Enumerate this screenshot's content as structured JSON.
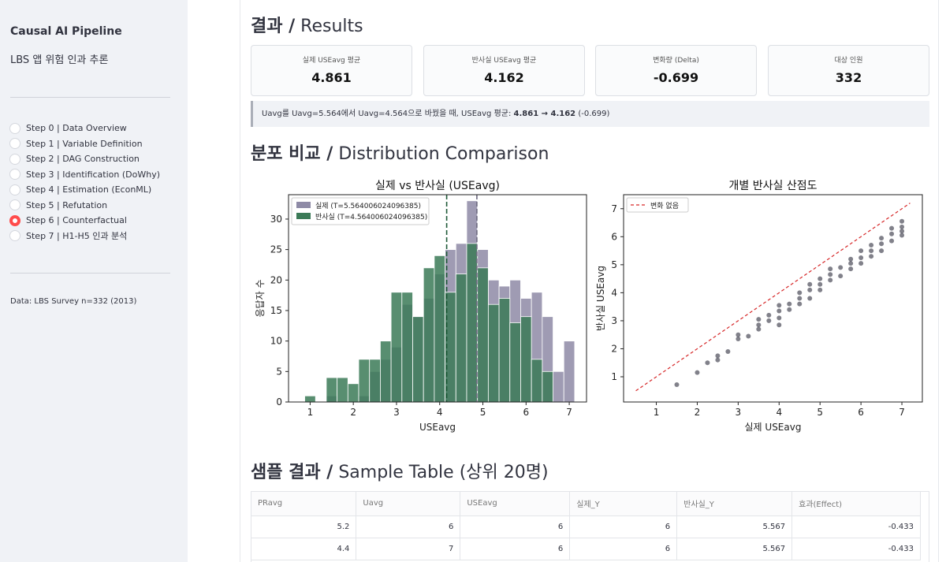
{
  "sidebar": {
    "title": "Causal AI Pipeline",
    "subtitle": "LBS 앱 위험 인과 추론",
    "steps": [
      {
        "label": "Step 0 | Data Overview",
        "selected": false
      },
      {
        "label": "Step 1 | Variable Definition",
        "selected": false
      },
      {
        "label": "Step 2 | DAG Construction",
        "selected": false
      },
      {
        "label": "Step 3 | Identification (DoWhy)",
        "selected": false
      },
      {
        "label": "Step 4 | Estimation (EconML)",
        "selected": false
      },
      {
        "label": "Step 5 | Refutation",
        "selected": false
      },
      {
        "label": "Step 6 | Counterfactual",
        "selected": true
      },
      {
        "label": "Step 7 | H1-H5 인과 분석",
        "selected": false
      }
    ],
    "data_note": "Data: LBS Survey n=332 (2013)"
  },
  "results": {
    "heading_ko": "결과 /",
    "heading_en": " Results",
    "metrics": [
      {
        "label": "실제 USEavg 평균",
        "value": "4.861"
      },
      {
        "label": "반사실 USEavg 평균",
        "value": "4.162"
      },
      {
        "label": "변화량 (Delta)",
        "value": "-0.699"
      },
      {
        "label": "대상 인원",
        "value": "332"
      }
    ],
    "info_prefix": "Uavg를 Uavg=5.564에서 Uavg=4.564으로 바꿨을 때, USEavg 평균: ",
    "info_bold": "4.861 → 4.162",
    "info_suffix": " (-0.699)"
  },
  "distribution": {
    "heading_ko": "분포 비교 /",
    "heading_en": " Distribution Comparison"
  },
  "sample": {
    "heading_ko": "샘플 결과 /",
    "heading_en": " Sample Table (상위 20명)",
    "columns": [
      "PRavg",
      "Uavg",
      "USEavg",
      "실제_Y",
      "반사실_Y",
      "효과(Effect)"
    ],
    "rows": [
      [
        "5.2",
        "6",
        "6",
        "6",
        "5.567",
        "-0.433"
      ],
      [
        "4.4",
        "7",
        "6",
        "6",
        "5.567",
        "-0.433"
      ]
    ]
  },
  "chart_data": [
    {
      "type": "bar",
      "title": "실제 vs 반사실  (USEavg)",
      "xlabel": "USEavg",
      "ylabel": "응답자 수",
      "xlim": [
        0.5,
        7.4
      ],
      "ylim": [
        0,
        34
      ],
      "xticks": [
        1,
        2,
        3,
        4,
        5,
        6,
        7
      ],
      "yticks": [
        0,
        5,
        10,
        15,
        20,
        25,
        30
      ],
      "legend": "top-left",
      "series": [
        {
          "name": "실제 (T=5.564006024096385)",
          "color": "#8e8aa6",
          "bars": [
            [
              1.5,
              1
            ],
            [
              2.25,
              1
            ],
            [
              2.5,
              5
            ],
            [
              2.75,
              7
            ],
            [
              3.0,
              9
            ],
            [
              3.25,
              16
            ],
            [
              3.5,
              14
            ],
            [
              3.75,
              17
            ],
            [
              4.0,
              21
            ],
            [
              4.25,
              25
            ],
            [
              4.5,
              26
            ],
            [
              4.75,
              33
            ],
            [
              5.0,
              25
            ],
            [
              5.25,
              20
            ],
            [
              5.5,
              19
            ],
            [
              5.75,
              20
            ],
            [
              6.0,
              17
            ],
            [
              6.25,
              18
            ],
            [
              6.5,
              14
            ],
            [
              6.75,
              5
            ],
            [
              7.0,
              10
            ]
          ],
          "mean_line": 4.861
        },
        {
          "name": "반사실 (T=4.564006024096385)",
          "color": "#3b7a57",
          "bars": [
            [
              1.0,
              1
            ],
            [
              1.5,
              4
            ],
            [
              1.75,
              4
            ],
            [
              2.0,
              3
            ],
            [
              2.25,
              7
            ],
            [
              2.5,
              7
            ],
            [
              2.75,
              10
            ],
            [
              3.0,
              18
            ],
            [
              3.25,
              18
            ],
            [
              3.5,
              14
            ],
            [
              3.75,
              22
            ],
            [
              4.0,
              24
            ],
            [
              4.25,
              18
            ],
            [
              4.5,
              21
            ],
            [
              4.75,
              26
            ],
            [
              5.0,
              22
            ],
            [
              5.25,
              16
            ],
            [
              5.5,
              17
            ],
            [
              5.75,
              13
            ],
            [
              6.0,
              14
            ],
            [
              6.25,
              7
            ],
            [
              6.5,
              5
            ]
          ],
          "mean_line": 4.162
        }
      ]
    },
    {
      "type": "scatter",
      "title": "개별 반사실 산점도",
      "xlabel": "실제 USEavg",
      "ylabel": "반사실 USEavg",
      "xlim": [
        0.2,
        7.5
      ],
      "ylim": [
        0.1,
        7.5
      ],
      "xticks": [
        1,
        2,
        3,
        4,
        5,
        6,
        7
      ],
      "yticks": [
        1,
        2,
        3,
        4,
        5,
        6,
        7
      ],
      "legend": "top-left",
      "reference_line": {
        "name": "변화 없음",
        "from": [
          0.5,
          0.5
        ],
        "to": [
          7.2,
          7.2
        ],
        "color": "#d62728"
      },
      "points": [
        [
          1.5,
          0.72
        ],
        [
          2.0,
          1.15
        ],
        [
          2.25,
          1.5
        ],
        [
          2.5,
          1.6
        ],
        [
          2.5,
          1.75
        ],
        [
          2.75,
          1.9
        ],
        [
          3.0,
          2.35
        ],
        [
          3.0,
          2.5
        ],
        [
          3.25,
          2.45
        ],
        [
          3.5,
          2.7
        ],
        [
          3.5,
          2.85
        ],
        [
          3.5,
          3.05
        ],
        [
          3.75,
          3.0
        ],
        [
          3.75,
          3.2
        ],
        [
          4.0,
          2.85
        ],
        [
          4.0,
          3.1
        ],
        [
          4.0,
          3.35
        ],
        [
          4.0,
          3.55
        ],
        [
          4.25,
          3.4
        ],
        [
          4.25,
          3.6
        ],
        [
          4.5,
          3.6
        ],
        [
          4.5,
          3.8
        ],
        [
          4.5,
          4.0
        ],
        [
          4.75,
          3.8
        ],
        [
          4.75,
          4.1
        ],
        [
          4.75,
          4.3
        ],
        [
          5.0,
          4.1
        ],
        [
          5.0,
          4.3
        ],
        [
          5.0,
          4.5
        ],
        [
          5.25,
          4.45
        ],
        [
          5.25,
          4.65
        ],
        [
          5.25,
          4.85
        ],
        [
          5.5,
          4.6
        ],
        [
          5.5,
          4.9
        ],
        [
          5.75,
          4.85
        ],
        [
          5.75,
          5.05
        ],
        [
          5.75,
          5.2
        ],
        [
          6.0,
          5.05
        ],
        [
          6.0,
          5.25
        ],
        [
          6.0,
          5.5
        ],
        [
          6.25,
          5.3
        ],
        [
          6.25,
          5.5
        ],
        [
          6.25,
          5.7
        ],
        [
          6.5,
          5.5
        ],
        [
          6.5,
          5.75
        ],
        [
          6.5,
          5.95
        ],
        [
          6.75,
          5.85
        ],
        [
          6.75,
          6.1
        ],
        [
          6.75,
          6.3
        ],
        [
          7.0,
          6.05
        ],
        [
          7.0,
          6.2
        ],
        [
          7.0,
          6.35
        ],
        [
          7.0,
          6.55
        ]
      ]
    }
  ]
}
